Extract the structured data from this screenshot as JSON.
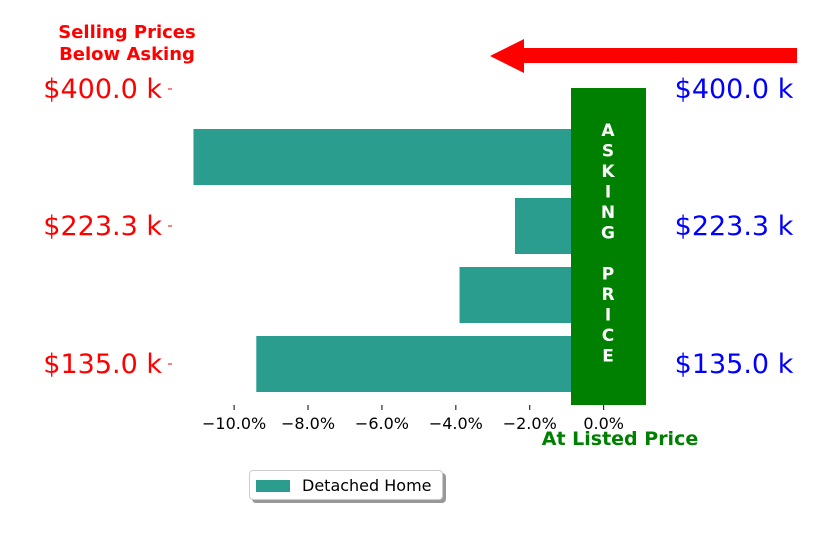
{
  "colors": {
    "bar": "#2a9d8f",
    "asking_band": "#008000",
    "left_labels": "#ff0000",
    "right_labels": "#0000ff",
    "arrow": "#ff0000"
  },
  "annotations": {
    "top_left_line1": "Selling Prices",
    "top_left_line2": "Below Asking",
    "asking_band_letters": [
      "A",
      "S",
      "K",
      "I",
      "N",
      "G",
      "",
      "P",
      "R",
      "I",
      "C",
      "E"
    ],
    "bottom_label": "At Listed Price",
    "arrow_direction": "left"
  },
  "chart_data": {
    "type": "bar",
    "orientation": "horizontal",
    "categories": [
      "$135.0 k",
      "",
      "$223.3 k",
      "$400.0 k"
    ],
    "series": [
      {
        "name": "Detached Home",
        "values": [
          -9.4,
          -3.9,
          -2.4,
          -11.1
        ]
      }
    ],
    "xlim": [
      -11.6,
      1.2
    ],
    "x_ticks": [
      -10,
      -8,
      -6,
      -4,
      -2,
      0
    ],
    "x_tick_labels": [
      "−10.0%",
      "−8.0%",
      "−6.0%",
      "−4.0%",
      "−2.0%",
      "0.0%"
    ],
    "left_tick_labels": [
      "$135.0 k",
      "$223.3 k",
      "$400.0 k"
    ],
    "right_tick_labels": [
      "$135.0 k",
      "$223.3 k",
      "$400.0 k"
    ],
    "legend": {
      "label": "Detached Home",
      "position": "below-left"
    }
  }
}
